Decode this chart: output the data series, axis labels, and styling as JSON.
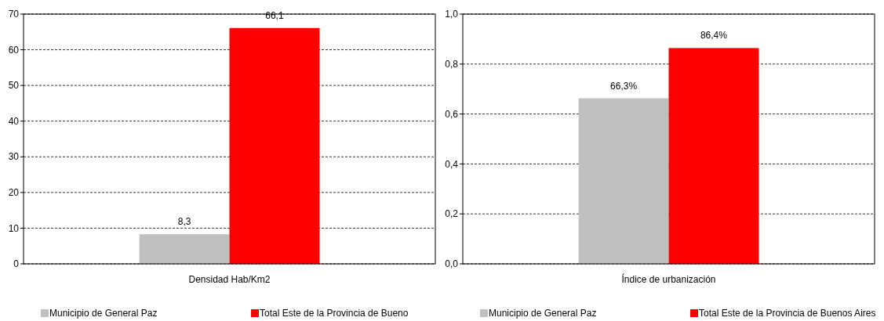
{
  "chart_data": [
    {
      "type": "bar",
      "categories": [
        "Densidad Hab/Km2"
      ],
      "series": [
        {
          "name": "Municipio de General Paz",
          "color": "#c0c0c0",
          "values": [
            8.3
          ],
          "value_labels": [
            "8,3"
          ]
        },
        {
          "name": "Total Este de la Provincia de Bueno",
          "color": "#ff0000",
          "values": [
            66.1
          ],
          "value_labels": [
            "66,1"
          ]
        }
      ],
      "ylim": [
        0,
        70
      ],
      "yticks": [
        0,
        10,
        20,
        30,
        40,
        50,
        60,
        70
      ],
      "grid": "y",
      "line_style": "dashed",
      "legend": "bottom"
    },
    {
      "type": "bar",
      "categories": [
        "Índice de urbanización"
      ],
      "series": [
        {
          "name": "Municipio de General Paz",
          "color": "#c0c0c0",
          "values": [
            0.663
          ],
          "value_labels": [
            "66,3%"
          ]
        },
        {
          "name": "Total Este de la Provincia de Buenos Aires",
          "color": "#ff0000",
          "values": [
            0.864
          ],
          "value_labels": [
            "86,4%"
          ]
        }
      ],
      "ylim": [
        0,
        1
      ],
      "yticks": [
        {
          "value": 0,
          "label": "0,0"
        },
        {
          "value": 0.2,
          "label": "0,2"
        },
        {
          "value": 0.4,
          "label": "0,4"
        },
        {
          "value": 0.6,
          "label": "0,6"
        },
        {
          "value": 0.8,
          "label": "0,8"
        },
        {
          "value": 1,
          "label": "1,0"
        }
      ],
      "grid": "y",
      "line_style": "dashed",
      "legend": "bottom"
    }
  ]
}
